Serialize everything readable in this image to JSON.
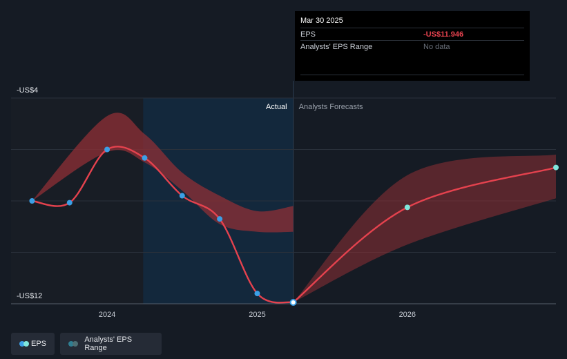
{
  "tooltip": {
    "date": "Mar 30 2025",
    "eps_label": "EPS",
    "eps_value": "-US$11.946",
    "range_label": "Analysts' EPS Range",
    "range_value": "No data"
  },
  "sections": {
    "actual": "Actual",
    "forecast": "Analysts Forecasts"
  },
  "legend": {
    "eps": "EPS",
    "range": "Analysts' EPS Range"
  },
  "colors": {
    "background": "#151b24",
    "eps_line": "#e5424e",
    "band": "#8f2f35",
    "actual_highlight": "#13283c",
    "eps_point": "#3b9fe6",
    "forecast_point": "#7fe6dc"
  },
  "chart_data": {
    "type": "line",
    "ylim": [
      -12,
      -4
    ],
    "y_tick_labels": [
      {
        "value": -4,
        "label": "-US$4"
      },
      {
        "value": -12,
        "label": "-US$12"
      }
    ],
    "x_ticks": [
      {
        "value": 2024.0,
        "label": "2024"
      },
      {
        "value": 2025.0,
        "label": "2025"
      },
      {
        "value": 2026.0,
        "label": "2026"
      }
    ],
    "xlim": [
      2023.36,
      2026.99
    ],
    "actual_start": 2024.24,
    "forecast_start": 2025.24,
    "series": [
      {
        "name": "EPS",
        "points": [
          {
            "x": 2023.5,
            "y": -8.0
          },
          {
            "x": 2023.75,
            "y": -8.07
          },
          {
            "x": 2024.0,
            "y": -6.0
          },
          {
            "x": 2024.25,
            "y": -6.33
          },
          {
            "x": 2024.5,
            "y": -7.8
          },
          {
            "x": 2024.75,
            "y": -8.7
          },
          {
            "x": 2025.0,
            "y": -11.6
          },
          {
            "x": 2025.24,
            "y": -11.946
          }
        ]
      },
      {
        "name": "Analysts' EPS Range",
        "upper": [
          {
            "x": 2023.5,
            "y": -8.0
          },
          {
            "x": 2024.0,
            "y": -4.7
          },
          {
            "x": 2024.25,
            "y": -5.4
          },
          {
            "x": 2024.5,
            "y": -6.9
          },
          {
            "x": 2024.75,
            "y": -7.8
          },
          {
            "x": 2025.0,
            "y": -8.4
          },
          {
            "x": 2025.24,
            "y": -8.2
          }
        ],
        "lower": [
          {
            "x": 2023.5,
            "y": -8.0
          },
          {
            "x": 2024.0,
            "y": -6.1
          },
          {
            "x": 2024.25,
            "y": -6.5
          },
          {
            "x": 2024.5,
            "y": -7.6
          },
          {
            "x": 2024.75,
            "y": -8.9
          },
          {
            "x": 2025.0,
            "y": -9.2
          },
          {
            "x": 2025.24,
            "y": -9.2
          }
        ]
      },
      {
        "name": "EPS forecast",
        "points": [
          {
            "x": 2025.24,
            "y": -11.946
          },
          {
            "x": 2026.0,
            "y": -8.25
          },
          {
            "x": 2026.99,
            "y": -6.7
          }
        ],
        "upper": [
          {
            "x": 2025.24,
            "y": -11.946
          },
          {
            "x": 2026.0,
            "y": -7.0
          },
          {
            "x": 2026.99,
            "y": -6.2
          }
        ],
        "lower": [
          {
            "x": 2025.24,
            "y": -11.946
          },
          {
            "x": 2026.0,
            "y": -9.7
          },
          {
            "x": 2026.99,
            "y": -7.9
          }
        ]
      }
    ]
  }
}
